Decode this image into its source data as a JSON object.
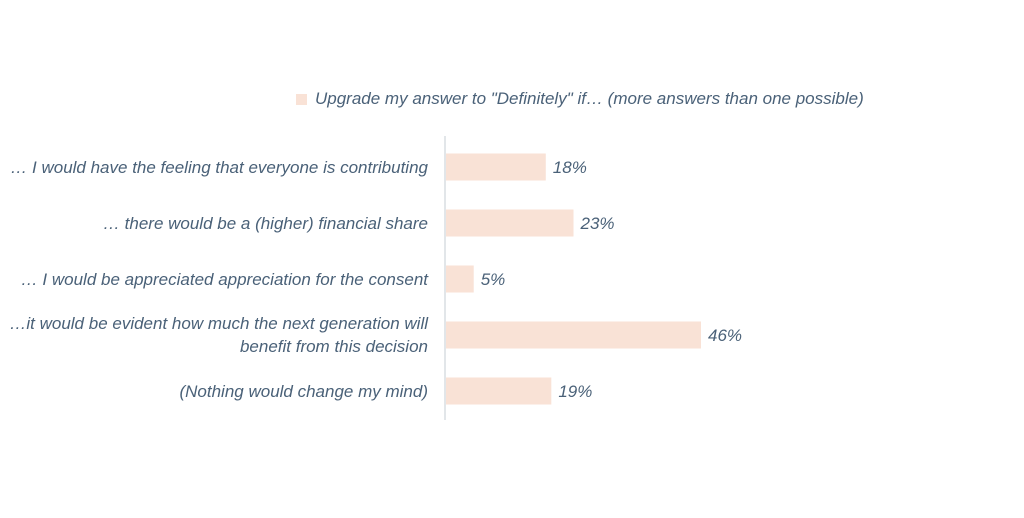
{
  "chart_data": {
    "type": "bar",
    "orientation": "horizontal",
    "legend": {
      "label": "Upgrade my answer to \"Definitely\"  if… (more answers than one possible)",
      "placement": "top"
    },
    "categories": [
      "… I would have the feeling that everyone is contributing",
      "… there would be a (higher) financial share",
      "… I would be appreciated appreciation for the consent",
      "…it would be evident how much the next generation will benefit from this decision",
      "(Nothing would change my mind)"
    ],
    "values": [
      18,
      23,
      5,
      46,
      19
    ],
    "value_labels": [
      "18%",
      "23%",
      "5%",
      "46%",
      "19%"
    ],
    "unit": "%",
    "xlim": [
      0,
      46
    ],
    "grid": false,
    "colors": {
      "bar": "#f9e2d6",
      "text": "#4a6178",
      "axis": "#d8dde2"
    }
  }
}
